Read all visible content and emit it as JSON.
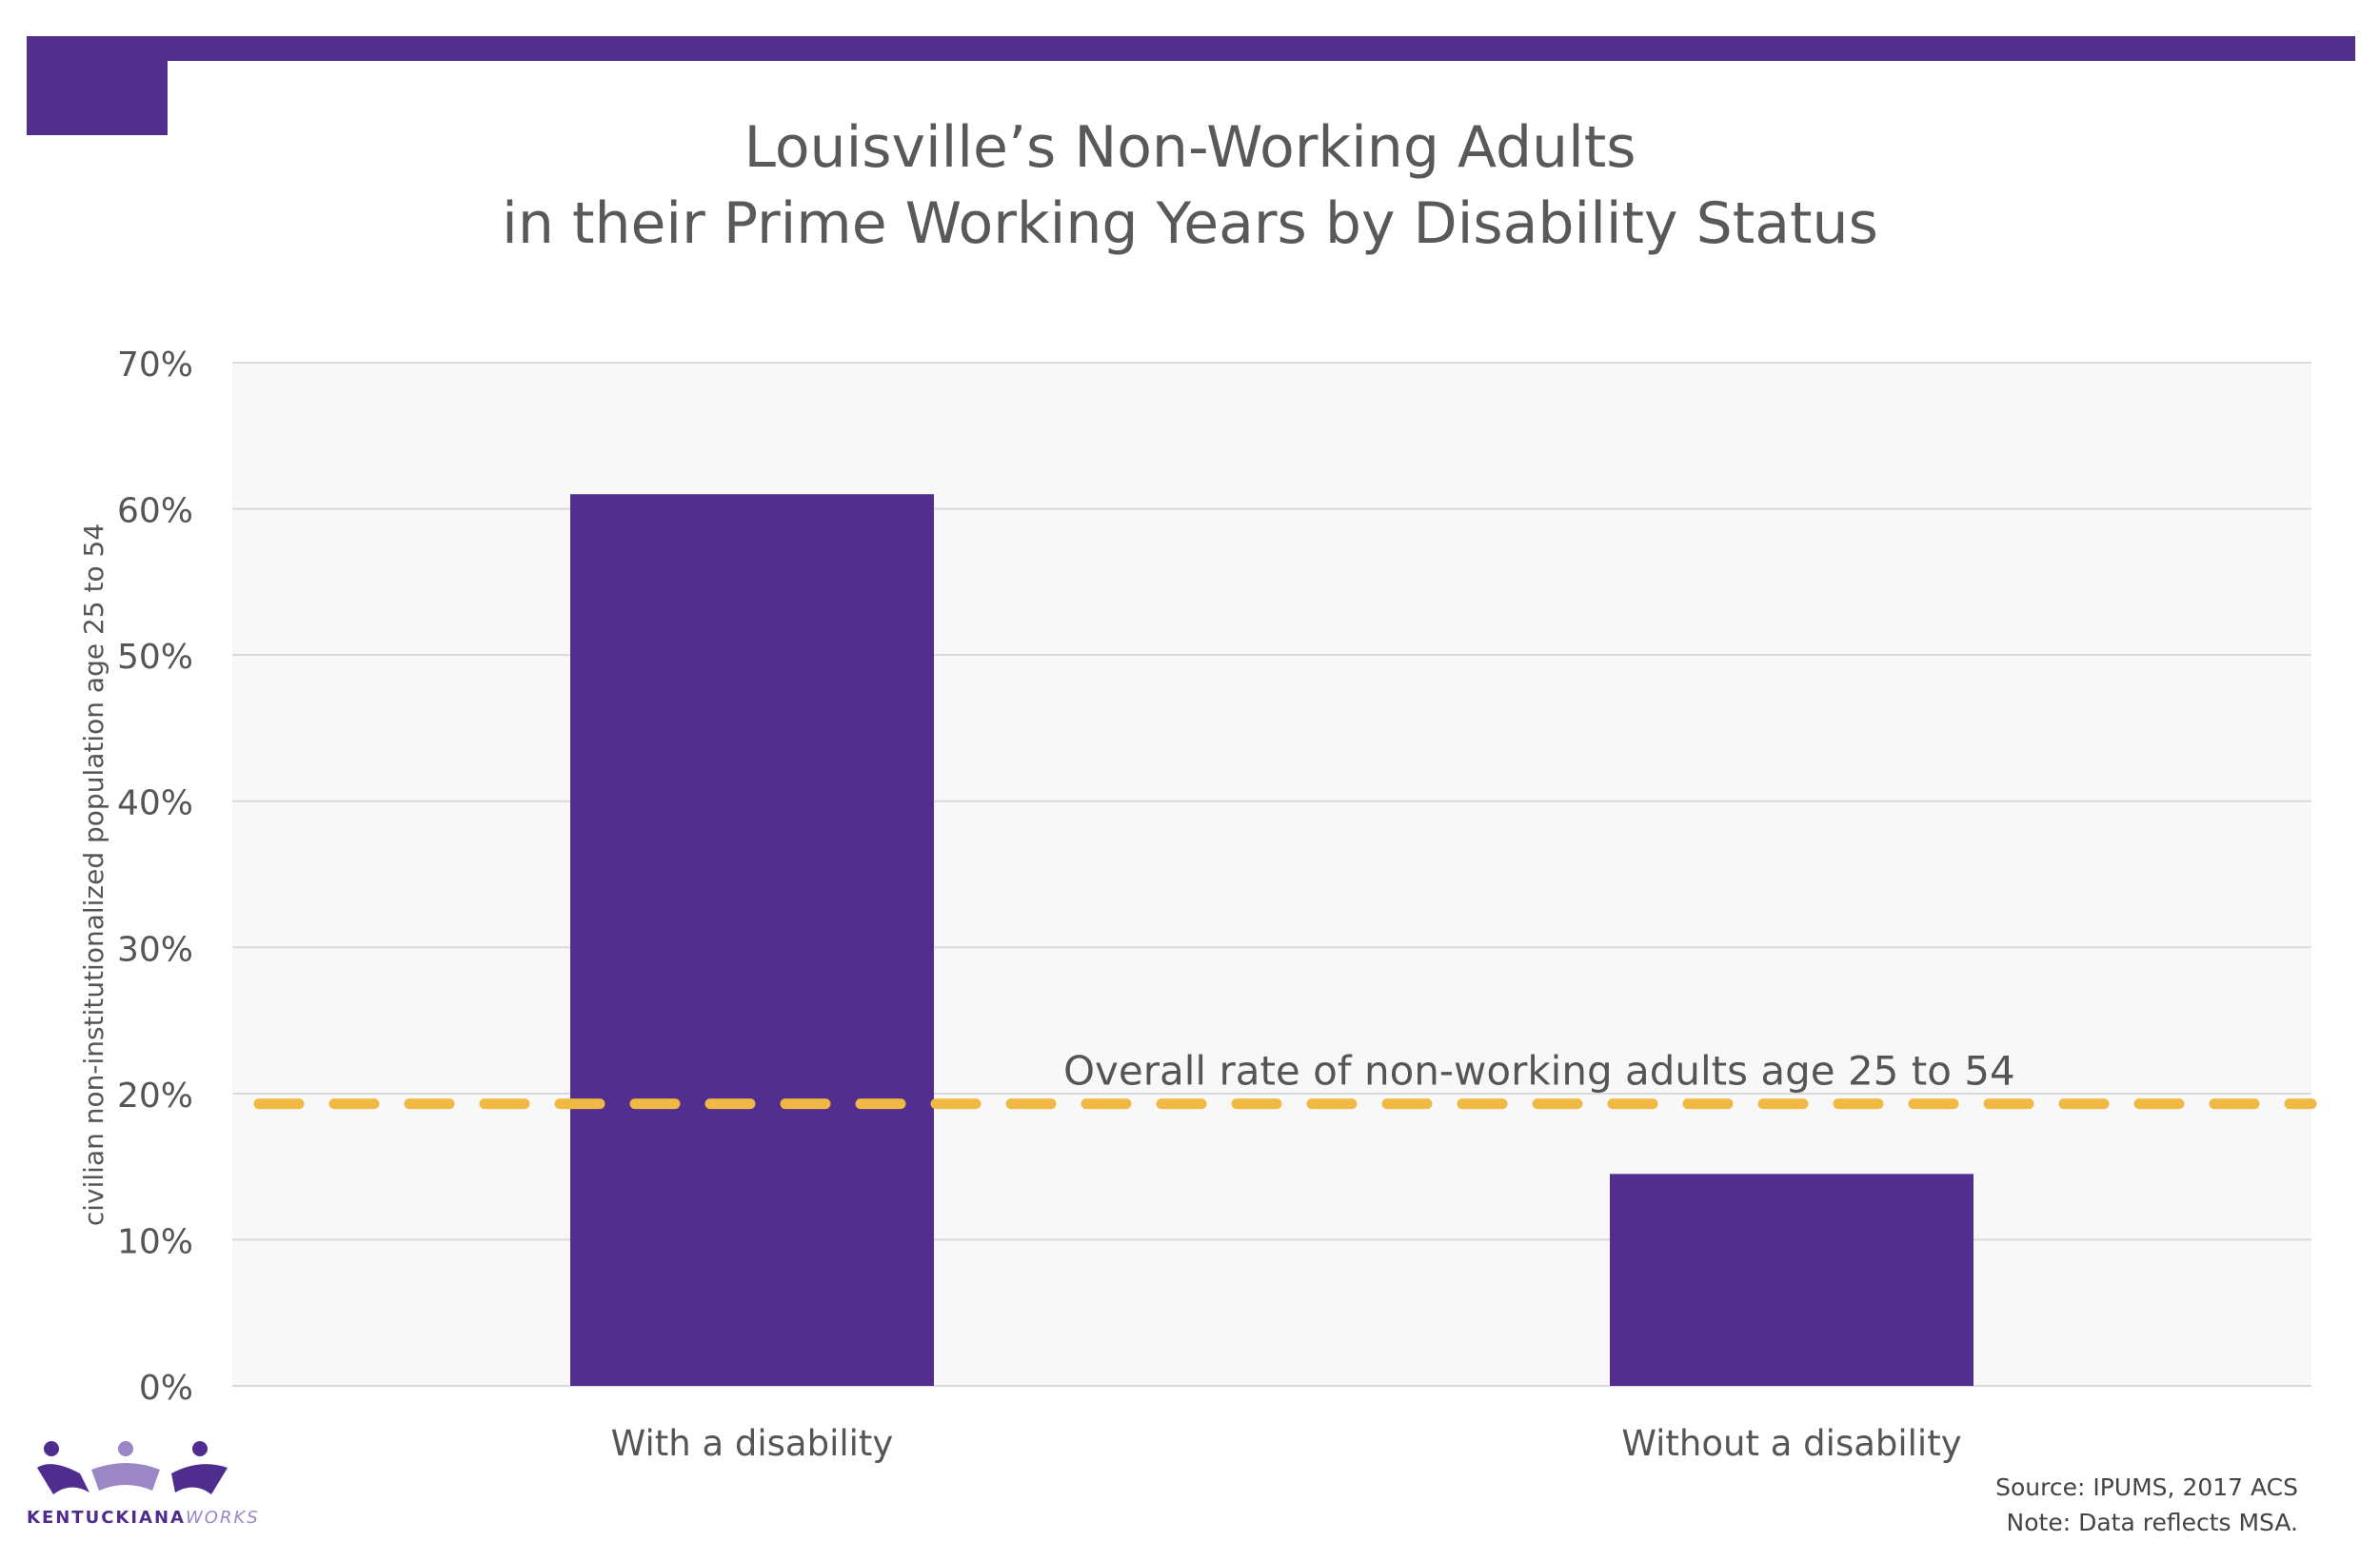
{
  "header": {
    "title_line1": "Louisville’s Non-Working Adults",
    "title_line2": "in their Prime Working Years by Disability Status"
  },
  "colors": {
    "accent": "#522e8e",
    "bar": "#522e8e",
    "reference_line": "#f0b943",
    "plot_background": "#f8f8f8",
    "grid": "#d9d9d9"
  },
  "chart_data": {
    "type": "bar",
    "title": "Louisville’s Non-Working Adults in their Prime Working Years by Disability Status",
    "categories": [
      "With a disability",
      "Without a disability"
    ],
    "values": [
      61,
      14.5
    ],
    "xlabel": "",
    "ylabel": "civilian non-institutionalized population age 25 to 54",
    "ylim": [
      0,
      70
    ],
    "yticks": [
      0,
      10,
      20,
      30,
      40,
      50,
      60,
      70
    ],
    "ytick_labels": [
      "0%",
      "10%",
      "20%",
      "30%",
      "40%",
      "50%",
      "60%",
      "70%"
    ],
    "grid": true,
    "reference_line": {
      "value": 19.3,
      "label": "Overall rate of non-working adults age 25 to 54",
      "style": "dashed"
    }
  },
  "footer": {
    "source": "Source: IPUMS, 2017 ACS",
    "note": "Note: Data reflects MSA."
  },
  "logo": {
    "text_main": "KENTUCKIANA",
    "text_accent": "WORKS"
  }
}
